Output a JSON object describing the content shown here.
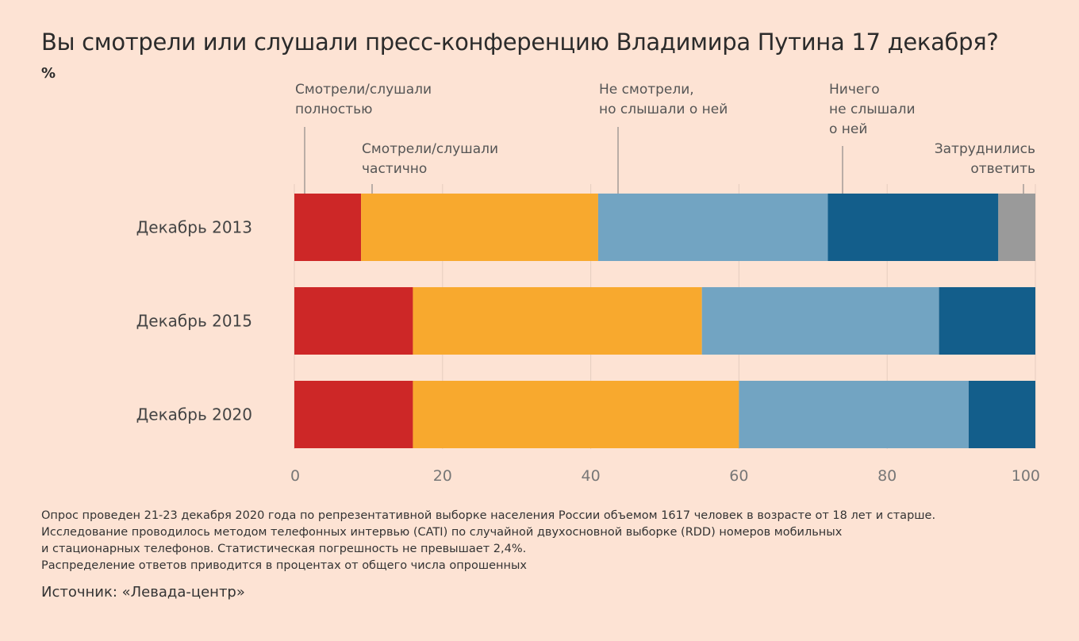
{
  "title": "Вы смотрели или слушали пресс-конференцию Владимира Путина 17 декабря?",
  "unit": "%",
  "chart_data": {
    "type": "bar",
    "orientation": "horizontal",
    "stacked": true,
    "categories": [
      "Декабрь 2013",
      "Декабрь 2015",
      "Декабрь 2020"
    ],
    "series": [
      {
        "name": "Смотрели/слушали полностью",
        "name_lines": [
          "Смотрели/слушали",
          "полностью"
        ],
        "color": "#cd2727",
        "values": [
          9,
          16,
          16
        ]
      },
      {
        "name": "Смотрели/слушали частично",
        "name_lines": [
          "Смотрели/слушали",
          "частично"
        ],
        "color": "#f8a92e",
        "values": [
          32,
          39,
          44
        ]
      },
      {
        "name": "Не смотрели, но слышали о ней",
        "name_lines": [
          "Не смотрели,",
          "но слышали о ней"
        ],
        "color": "#72a4c2",
        "values": [
          31,
          32,
          31
        ]
      },
      {
        "name": "Ничего не слышали о ней",
        "name_lines": [
          "Ничего",
          "не слышали",
          "о ней"
        ],
        "color": "#135e8b",
        "values": [
          23,
          13,
          9
        ]
      },
      {
        "name": "Затруднились ответить",
        "name_lines": [
          "Затруднились",
          "ответить"
        ],
        "color": "#9a9a9a",
        "values": [
          5,
          0,
          0
        ]
      }
    ],
    "xlim": [
      0,
      100
    ],
    "xticks": [
      0,
      20,
      40,
      60,
      80,
      100
    ],
    "grid": true,
    "legend": "top, labels with leader lines"
  },
  "notes": [
    "Опрос проведен 21-23 декабря 2020 года по репрезентативной выборке населения России объемом 1617 человек в возрасте от 18 лет и старше.",
    "Исследование проводилось методом телефонных интервью (CATI) по случайной двухосновной выборке (RDD) номеров мобильных",
    "и стационарных телефонов. Статистическая погрешность не превышает 2,4%.",
    "Распределение ответов приводится в процентах от общего числа опрошенных"
  ],
  "source": "Источник: «Левада-центр»"
}
